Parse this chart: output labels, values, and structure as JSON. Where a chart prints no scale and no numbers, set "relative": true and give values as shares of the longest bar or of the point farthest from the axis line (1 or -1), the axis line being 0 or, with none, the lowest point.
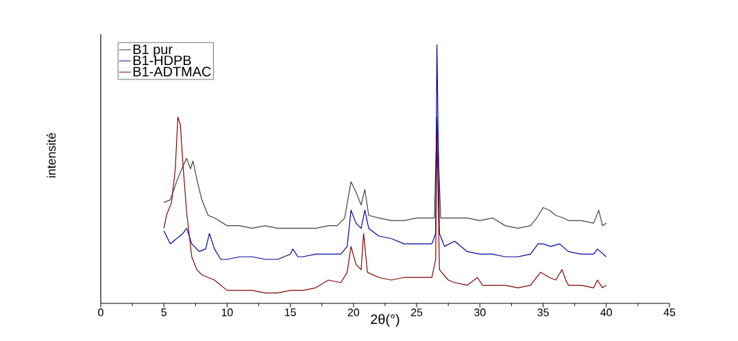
{
  "chart_data": {
    "type": "line",
    "relative": true,
    "xlabel": "2θ(°)",
    "ylabel": "intensité",
    "xlim": [
      0,
      45
    ],
    "xticks": [
      0,
      5,
      10,
      15,
      20,
      25,
      30,
      35,
      40,
      45
    ],
    "legend": "top left",
    "tick_labels": "x",
    "marker": "none",
    "line_style": "solid",
    "series": [
      {
        "name": "B1 pur",
        "color": "#404040",
        "x": [
          5,
          5.5,
          6,
          6.5,
          6.8,
          7.1,
          7.3,
          7.6,
          8,
          8.5,
          9,
          10,
          11,
          12,
          13,
          14,
          15,
          16,
          17,
          18,
          18.7,
          19.3,
          19.8,
          20.2,
          20.6,
          20.9,
          21.2,
          22,
          23,
          24,
          25,
          26,
          26.4,
          26.6,
          26.9,
          27.5,
          28,
          29,
          30,
          31,
          32,
          33,
          34,
          34.5,
          35,
          35.5,
          36,
          36.6,
          37,
          38,
          39,
          39.4,
          39.7,
          40
        ],
        "values": [
          0.39,
          0.4,
          0.47,
          0.53,
          0.56,
          0.52,
          0.55,
          0.48,
          0.4,
          0.34,
          0.33,
          0.3,
          0.3,
          0.29,
          0.3,
          0.29,
          0.29,
          0.29,
          0.29,
          0.3,
          0.3,
          0.33,
          0.47,
          0.43,
          0.38,
          0.44,
          0.34,
          0.33,
          0.32,
          0.32,
          0.33,
          0.33,
          0.33,
          0.72,
          0.33,
          0.33,
          0.33,
          0.33,
          0.32,
          0.33,
          0.3,
          0.29,
          0.3,
          0.33,
          0.37,
          0.36,
          0.34,
          0.33,
          0.32,
          0.32,
          0.31,
          0.36,
          0.3,
          0.31
        ]
      },
      {
        "name": "B1-HDPB",
        "color": "#0000a0",
        "x": [
          5,
          5.5,
          6,
          6.5,
          6.8,
          7.2,
          7.8,
          8.3,
          8.6,
          9,
          9.5,
          10,
          11,
          12,
          13,
          14,
          15,
          15.2,
          15.6,
          16,
          17,
          18,
          19,
          19.5,
          19.8,
          20.2,
          20.6,
          20.9,
          21.2,
          22,
          23,
          24,
          25,
          26.2,
          26.5,
          26.6,
          26.8,
          27.2,
          28,
          29,
          30,
          31,
          32,
          33,
          34,
          34.6,
          35,
          35.6,
          36.3,
          37,
          38,
          39,
          39.3,
          40
        ],
        "values": [
          0.28,
          0.23,
          0.25,
          0.27,
          0.29,
          0.23,
          0.2,
          0.21,
          0.27,
          0.21,
          0.17,
          0.17,
          0.18,
          0.18,
          0.17,
          0.17,
          0.19,
          0.21,
          0.18,
          0.18,
          0.19,
          0.19,
          0.19,
          0.22,
          0.36,
          0.31,
          0.29,
          0.36,
          0.29,
          0.26,
          0.25,
          0.23,
          0.23,
          0.23,
          0.27,
          1,
          0.27,
          0.22,
          0.24,
          0.2,
          0.19,
          0.19,
          0.18,
          0.18,
          0.19,
          0.23,
          0.23,
          0.22,
          0.23,
          0.2,
          0.19,
          0.19,
          0.21,
          0.18
        ]
      },
      {
        "name": "B1-ADTMAC",
        "color": "#800000",
        "x": [
          5,
          5.2,
          5.6,
          5.9,
          6.1,
          6.3,
          6.5,
          6.8,
          7.2,
          7.6,
          8,
          9,
          10,
          11,
          12,
          13,
          14,
          15,
          16,
          17,
          18,
          19,
          19.5,
          19.8,
          20.2,
          20.6,
          20.8,
          21.1,
          22,
          23,
          24,
          25,
          26.2,
          26.5,
          26.6,
          26.8,
          27.5,
          28,
          29,
          29.8,
          30.2,
          31,
          32,
          33,
          34,
          34.8,
          35.5,
          36,
          36.5,
          36.8,
          37,
          38,
          39,
          39.3,
          39.7,
          40
        ],
        "values": [
          0.29,
          0.34,
          0.39,
          0.52,
          0.72,
          0.69,
          0.54,
          0.35,
          0.18,
          0.13,
          0.11,
          0.09,
          0.05,
          0.05,
          0.05,
          0.04,
          0.04,
          0.05,
          0.05,
          0.06,
          0.09,
          0.08,
          0.12,
          0.22,
          0.15,
          0.13,
          0.27,
          0.12,
          0.1,
          0.09,
          0.1,
          0.1,
          0.1,
          0.17,
          0.66,
          0.13,
          0.09,
          0.08,
          0.07,
          0.1,
          0.07,
          0.07,
          0.07,
          0.06,
          0.07,
          0.12,
          0.1,
          0.09,
          0.13,
          0.09,
          0.07,
          0.07,
          0.06,
          0.09,
          0.06,
          0.07
        ]
      }
    ]
  }
}
